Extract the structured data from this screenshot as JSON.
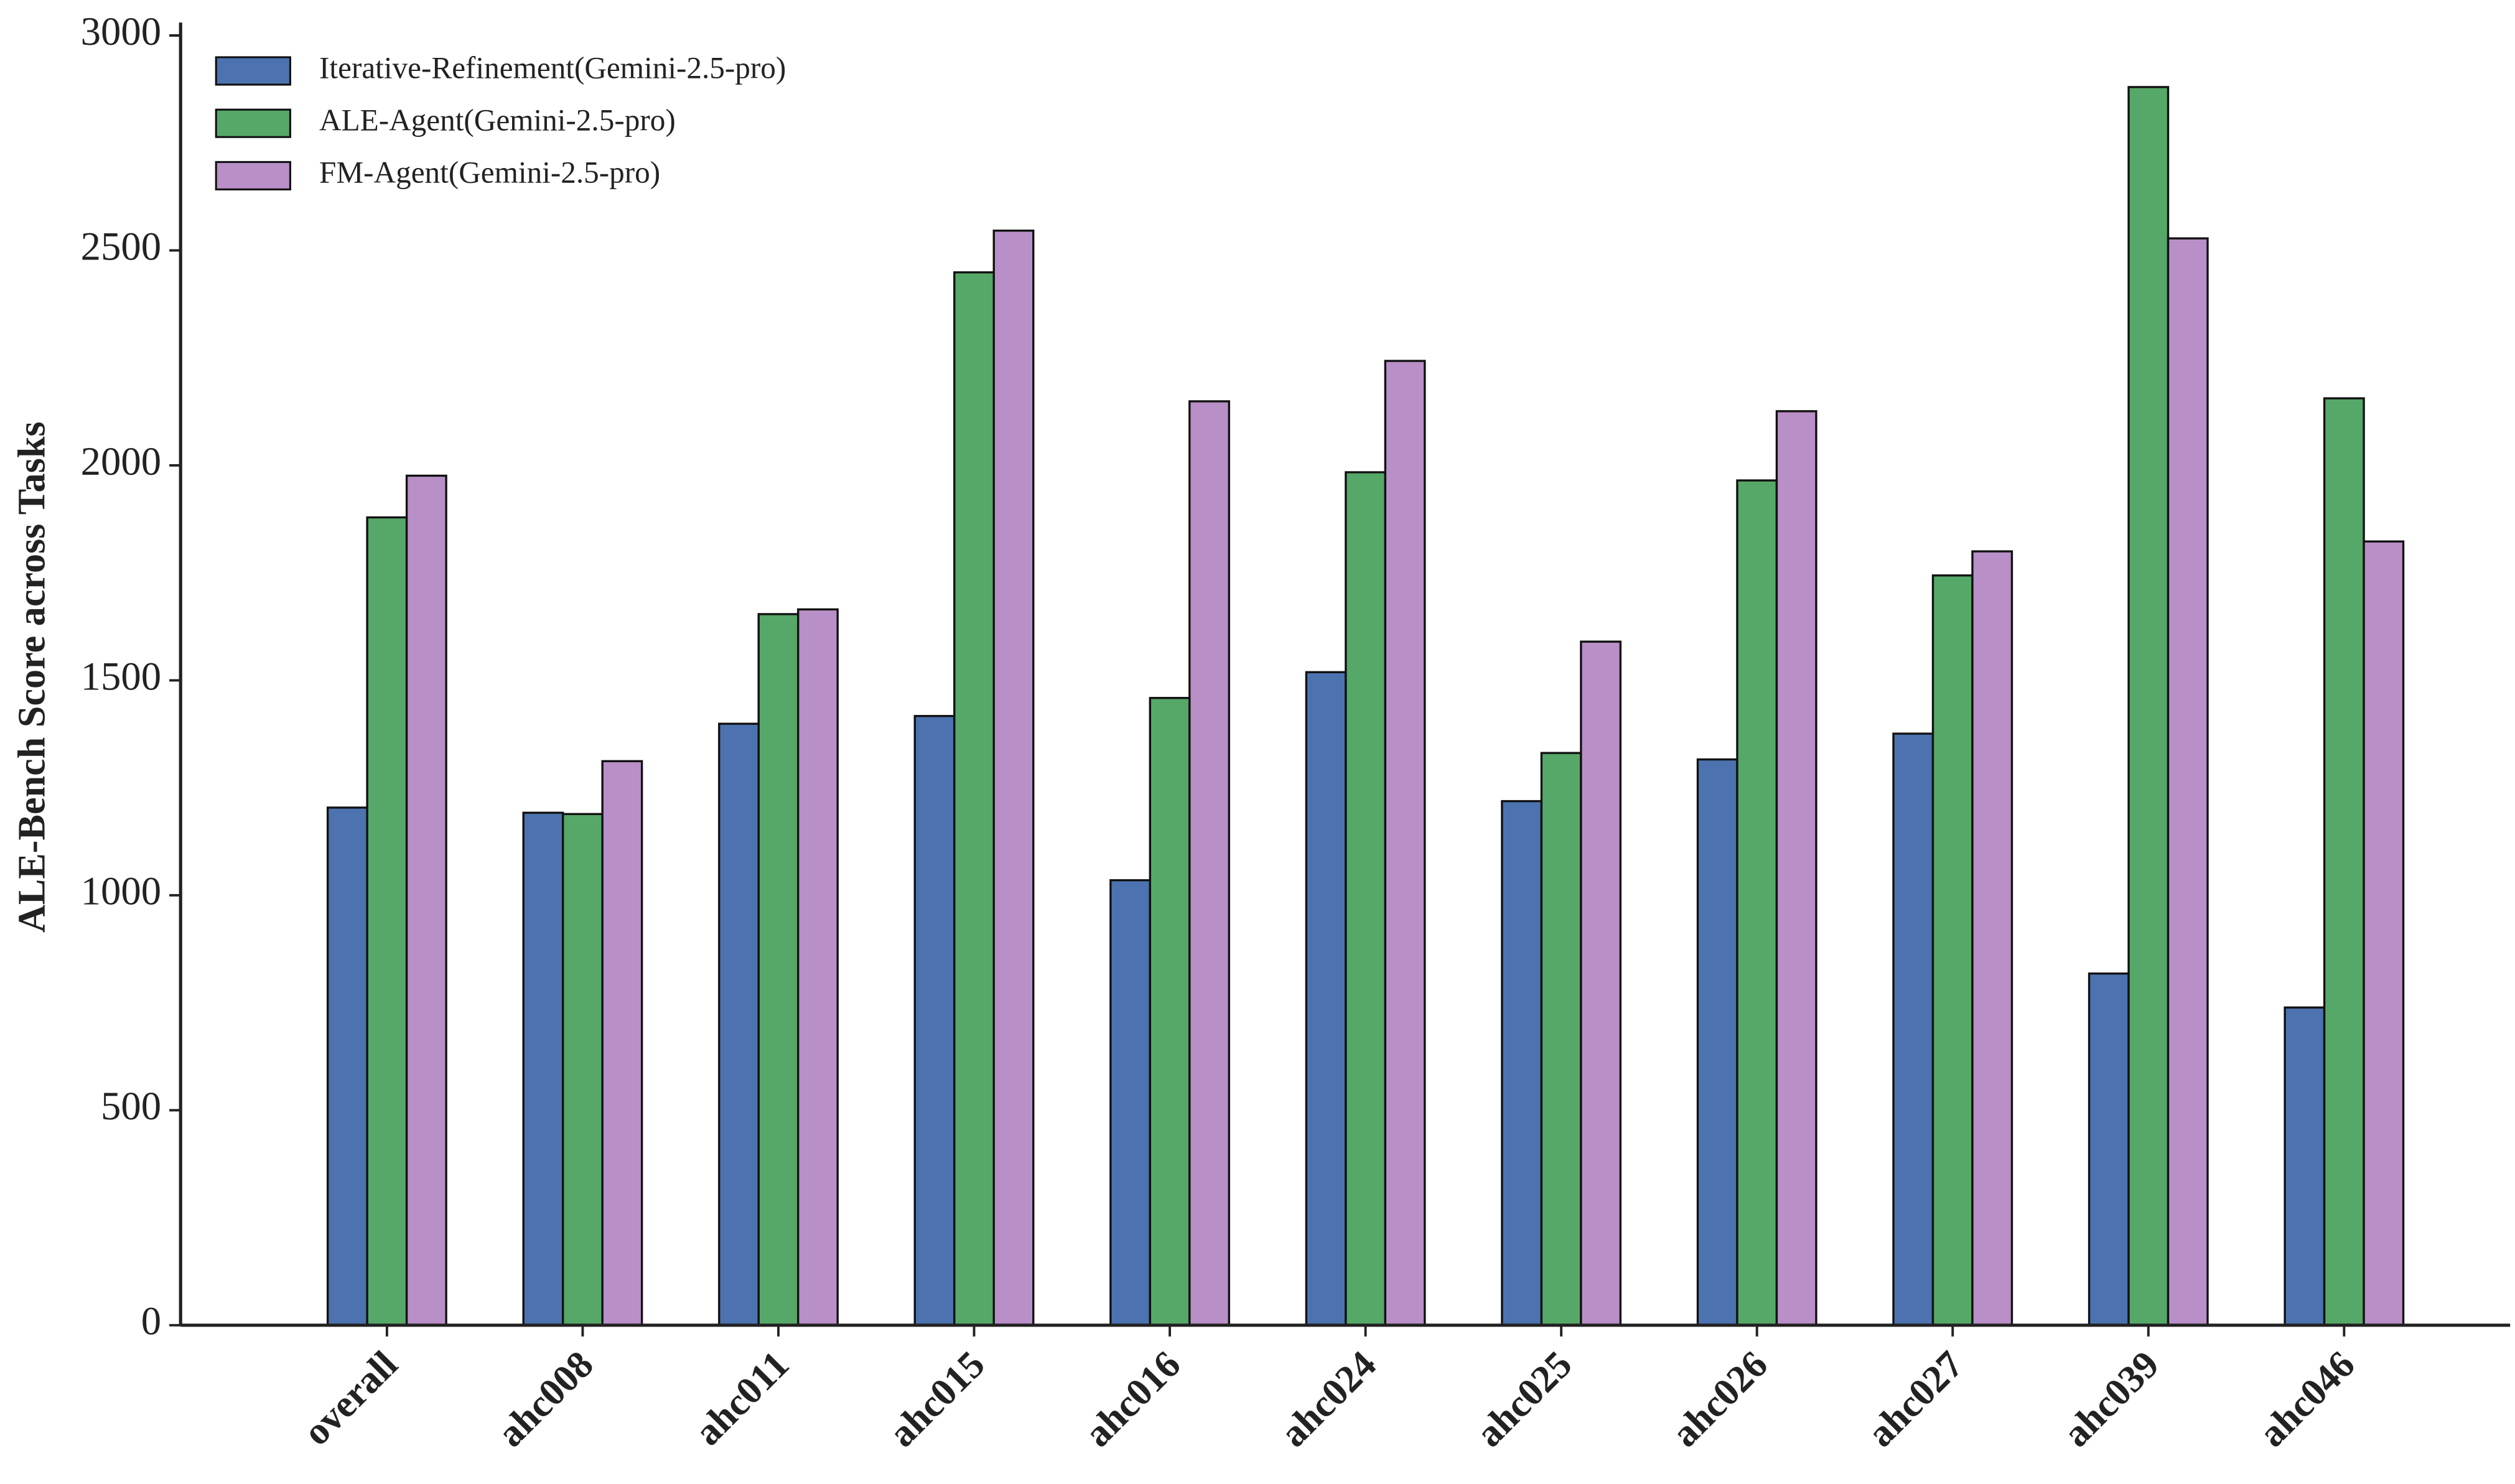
{
  "chart_data": {
    "type": "bar",
    "ylabel": "ALE-Bench Score across Tasks",
    "categories": [
      "overall",
      "ahc008",
      "ahc011",
      "ahc015",
      "ahc016",
      "ahc024",
      "ahc025",
      "ahc026",
      "ahc027",
      "ahc039",
      "ahc046"
    ],
    "series": [
      {
        "name": "Iterative-Refinement(Gemini-2.5-pro)",
        "color": "#4c72b0",
        "values": [
          1204,
          1192,
          1399,
          1417,
          1035,
          1519,
          1219,
          1316,
          1376,
          818,
          739
        ]
      },
      {
        "name": "ALE-Agent(Gemini-2.5-pro)",
        "color": "#55a868",
        "values": [
          1879,
          1189,
          1654,
          2449,
          1459,
          1984,
          1331,
          1965,
          1744,
          2880,
          2156
        ]
      },
      {
        "name": "FM-Agent(Gemini-2.5-pro)",
        "color": "#b98fc7",
        "values": [
          1976,
          1312,
          1665,
          2546,
          2149,
          2243,
          1590,
          2126,
          1800,
          2528,
          1823
        ]
      }
    ],
    "ylim": [
      0,
      3000
    ],
    "yticks": [
      0,
      500,
      1000,
      1500,
      2000,
      2500,
      3000
    ],
    "legend": "upper left"
  }
}
